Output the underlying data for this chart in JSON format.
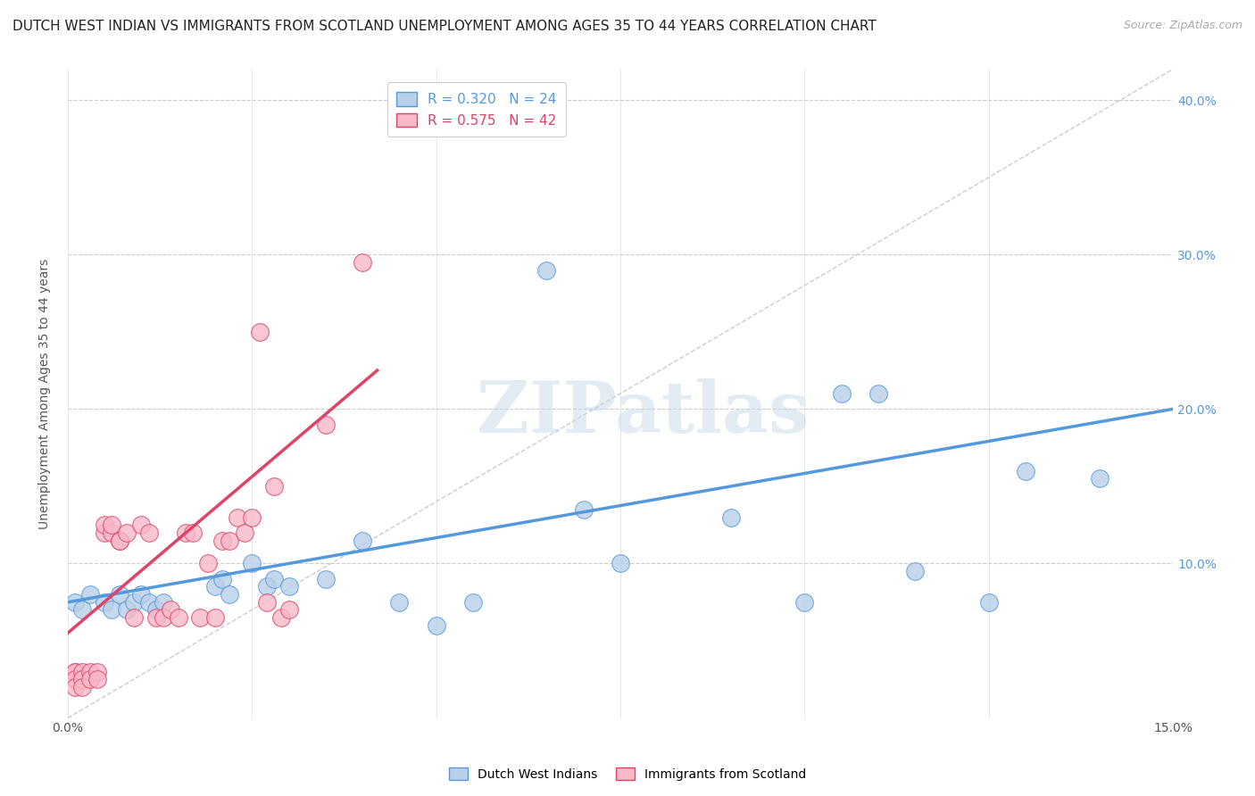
{
  "title": "DUTCH WEST INDIAN VS IMMIGRANTS FROM SCOTLAND UNEMPLOYMENT AMONG AGES 35 TO 44 YEARS CORRELATION CHART",
  "source": "Source: ZipAtlas.com",
  "ylabel": "Unemployment Among Ages 35 to 44 years",
  "xlim": [
    0.0,
    0.15
  ],
  "ylim": [
    0.0,
    0.42
  ],
  "blue_scatter_x": [
    0.001,
    0.002,
    0.003,
    0.005,
    0.006,
    0.007,
    0.008,
    0.009,
    0.01,
    0.011,
    0.012,
    0.013,
    0.02,
    0.021,
    0.022,
    0.025,
    0.027,
    0.028,
    0.03,
    0.035,
    0.04,
    0.045,
    0.05,
    0.055,
    0.065,
    0.07,
    0.075,
    0.09,
    0.1,
    0.105,
    0.11,
    0.115,
    0.125,
    0.13,
    0.14
  ],
  "blue_scatter_y": [
    0.075,
    0.07,
    0.08,
    0.075,
    0.07,
    0.08,
    0.07,
    0.075,
    0.08,
    0.075,
    0.07,
    0.075,
    0.085,
    0.09,
    0.08,
    0.1,
    0.085,
    0.09,
    0.085,
    0.09,
    0.115,
    0.075,
    0.06,
    0.075,
    0.29,
    0.135,
    0.1,
    0.13,
    0.075,
    0.21,
    0.21,
    0.095,
    0.075,
    0.16,
    0.155
  ],
  "pink_scatter_x": [
    0.001,
    0.001,
    0.001,
    0.001,
    0.002,
    0.002,
    0.002,
    0.003,
    0.003,
    0.004,
    0.004,
    0.005,
    0.005,
    0.006,
    0.006,
    0.007,
    0.007,
    0.008,
    0.009,
    0.01,
    0.011,
    0.012,
    0.013,
    0.014,
    0.015,
    0.016,
    0.017,
    0.018,
    0.019,
    0.02,
    0.021,
    0.022,
    0.023,
    0.024,
    0.025,
    0.026,
    0.027,
    0.028,
    0.029,
    0.03,
    0.035,
    0.04
  ],
  "pink_scatter_y": [
    0.03,
    0.03,
    0.025,
    0.02,
    0.03,
    0.025,
    0.02,
    0.03,
    0.025,
    0.03,
    0.025,
    0.12,
    0.125,
    0.12,
    0.125,
    0.115,
    0.115,
    0.12,
    0.065,
    0.125,
    0.12,
    0.065,
    0.065,
    0.07,
    0.065,
    0.12,
    0.12,
    0.065,
    0.1,
    0.065,
    0.115,
    0.115,
    0.13,
    0.12,
    0.13,
    0.25,
    0.075,
    0.15,
    0.065,
    0.07,
    0.19,
    0.295
  ],
  "blue_line_x": [
    0.0,
    0.15
  ],
  "blue_line_y": [
    0.075,
    0.2
  ],
  "pink_line_x": [
    0.0,
    0.042
  ],
  "pink_line_y": [
    0.055,
    0.225
  ],
  "diagonal_line_x": [
    0.0,
    0.15
  ],
  "diagonal_line_y": [
    0.0,
    0.42
  ],
  "blue_color": "#b8d0e8",
  "blue_edge_color": "#5599dd",
  "pink_color": "#f8b8c8",
  "pink_edge_color": "#dd4466",
  "diagonal_color": "#cccccc",
  "background_color": "#ffffff",
  "watermark": "ZIPatlas",
  "title_fontsize": 11,
  "axis_fontsize": 10
}
